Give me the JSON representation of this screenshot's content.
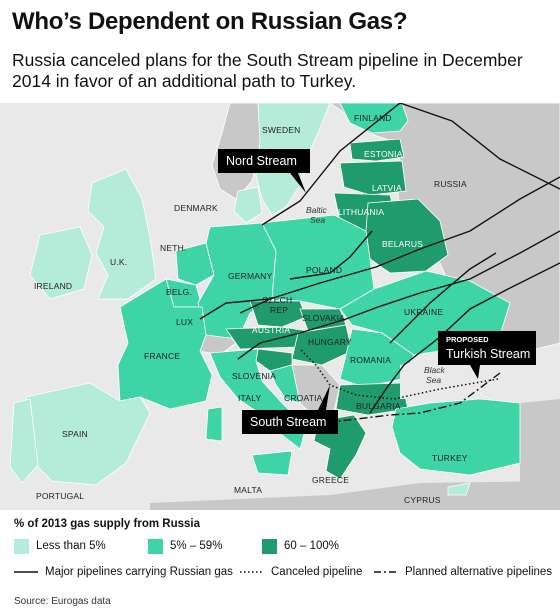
{
  "title": "Who’s Dependent on Russian Gas?",
  "subtitle": "Russia canceled plans for the South Stream pipeline in December 2014 in favor of an additional path to Turkey.",
  "colors": {
    "sea": "#e9e9e9",
    "non_eu": "#c8c8c8",
    "low": "#b4ebd9",
    "mid": "#3ed4a5",
    "high": "#1f9b6e",
    "callout": "#000000"
  },
  "map": {
    "countries": {
      "finland": "FINLAND",
      "sweden": "SWEDEN",
      "estonia": "ESTONIA",
      "latvia": "LATVIA",
      "lithuania": "LITHUANIA",
      "russia": "RUSSIA",
      "denmark": "DENMARK",
      "belarus": "BELARUS",
      "neth": "NETH.",
      "uk": "U.K.",
      "ireland": "IRELAND",
      "belg": "BELG.",
      "germany": "GERMANY",
      "poland": "POLAND",
      "czech": "CZECH",
      "rep": "REP",
      "lux": "LUX",
      "slovakia": "SLOVAKIA",
      "ukraine": "UKRAINE",
      "austria": "AUSTRIA",
      "hungary": "HUNGARY",
      "france": "FRANCE",
      "romania": "ROMANIA",
      "slovenia": "SLOVENIA",
      "croatia": "CROATIA",
      "italy": "ITALY",
      "bulgaria": "BULGARIA",
      "spain": "SPAIN",
      "turkey": "TURKEY",
      "portugal": "PORTUGAL",
      "greece": "GREECE",
      "malta": "MALTA",
      "cyprus": "CYPRUS"
    },
    "seas": {
      "baltic_1": "Baltic",
      "baltic_2": "Sea",
      "black_1": "Black",
      "black_2": "Sea"
    },
    "callouts": {
      "nord_stream": "Nord Stream",
      "south_stream": "South Stream",
      "turkish_proposed": "PROPOSED",
      "turkish_stream": "Turkish Stream"
    }
  },
  "legend": {
    "title": "% of 2013 gas supply from Russia",
    "low": "Less than 5%",
    "mid": "5% – 59%",
    "high": "60 – 100%",
    "major": "Major pipelines carrying Russian gas",
    "canceled": "Canceled pipeline",
    "planned": "Planned alternative pipelines"
  },
  "source": "Source: Eurogas data"
}
